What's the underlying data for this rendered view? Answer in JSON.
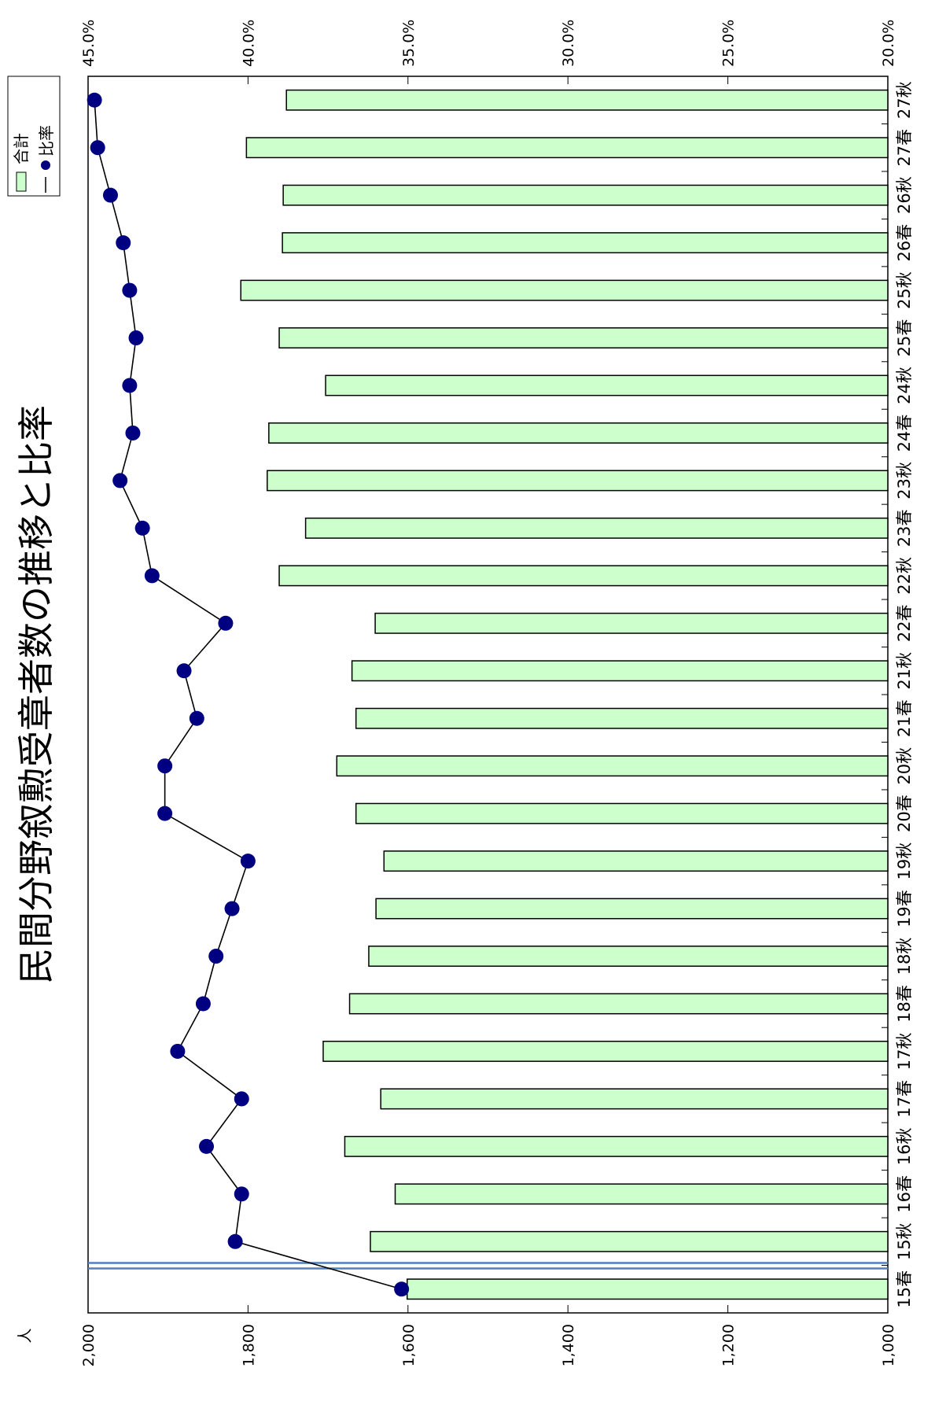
{
  "chart_data": {
    "type": "bar",
    "title": "民間分野叙勲受章者数の推移と比率",
    "orientation": "rotated-90",
    "categories": [
      "15春",
      "15秋",
      "16春",
      "16秋",
      "17春",
      "17秋",
      "18春",
      "18秋",
      "19春",
      "19秋",
      "20春",
      "20秋",
      "21春",
      "21秋",
      "22春",
      "22秋",
      "23春",
      "23秋",
      "24春",
      "24秋",
      "25春",
      "25秋",
      "26春",
      "26秋",
      "27春",
      "27秋"
    ],
    "series": [
      {
        "name": "合計",
        "kind": "bar",
        "axis": "left",
        "color": "#ccffcc",
        "values": [
          1601,
          1647,
          1616,
          1679,
          1634,
          1706,
          1673,
          1649,
          1640,
          1630,
          1665,
          1689,
          1665,
          1670,
          1641,
          1761,
          1728,
          1776,
          1774,
          1703,
          1761,
          1809,
          1757,
          1756,
          1802,
          1752
        ]
      },
      {
        "name": "比率",
        "kind": "line",
        "axis": "right",
        "color": "#000080",
        "values": [
          35.2,
          40.4,
          40.2,
          41.3,
          40.2,
          42.2,
          41.4,
          41.0,
          40.5,
          40.0,
          42.6,
          42.6,
          41.6,
          42.0,
          40.7,
          43.0,
          43.3,
          44.0,
          43.6,
          43.7,
          43.5,
          43.7,
          43.9,
          44.3,
          44.7,
          44.8
        ]
      }
    ],
    "left_axis": {
      "unit_label": "人",
      "min": 1000,
      "max": 2000,
      "ticks": [
        "1,000",
        "1,200",
        "1,400",
        "1,600",
        "1,800",
        "2,000"
      ]
    },
    "right_axis": {
      "min": 20.0,
      "max": 45.0,
      "ticks": [
        "20.0%",
        "25.0%",
        "30.0%",
        "35.0%",
        "40.0%",
        "45.0%"
      ]
    },
    "legend": {
      "placement": "top-right",
      "items": [
        "合計",
        "比率"
      ]
    },
    "grid": false,
    "marker_line_after_category": "15春"
  }
}
